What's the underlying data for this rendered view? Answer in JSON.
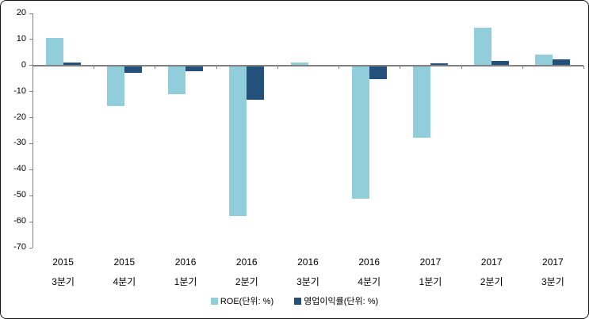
{
  "chart_data": {
    "type": "bar",
    "title": "",
    "categories": [
      [
        "2015",
        "3분기"
      ],
      [
        "2015",
        "4분기"
      ],
      [
        "2016",
        "1분기"
      ],
      [
        "2016",
        "2분기"
      ],
      [
        "2016",
        "3분기"
      ],
      [
        "2016",
        "4분기"
      ],
      [
        "2017",
        "1분기"
      ],
      [
        "2017",
        "2분기"
      ],
      [
        "2017",
        "3분기"
      ]
    ],
    "series": [
      {
        "name": "ROE(단위: %)",
        "color": "#92CDDC",
        "values": [
          10.7,
          -15.5,
          -10.9,
          -57.9,
          1.0,
          -51.2,
          -27.7,
          14.5,
          4.2
        ]
      },
      {
        "name": "영업이익률(단위: %)",
        "color": "#24507C",
        "values": [
          1.3,
          -2.7,
          -2.3,
          -13.1,
          0,
          -5.3,
          0.8,
          1.8,
          2.3
        ]
      }
    ],
    "ylim": [
      -70,
      20
    ],
    "yticks": [
      20,
      10,
      0,
      -10,
      -20,
      -30,
      -40,
      -50,
      -60,
      -70
    ],
    "xlabel": "",
    "ylabel": "",
    "grid": false,
    "legend_position": "bottom",
    "axis_color": "#808080",
    "text_color": "#000000"
  }
}
